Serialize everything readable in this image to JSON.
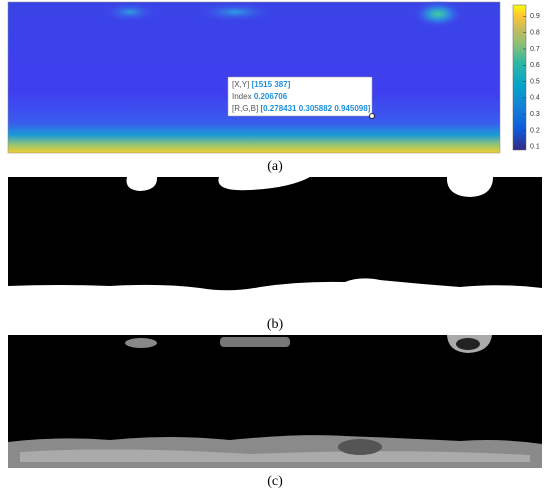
{
  "panels": [
    {
      "caption": "(a)"
    },
    {
      "caption": "(b)"
    },
    {
      "caption": "(c)"
    }
  ],
  "colorbar": {
    "range": [
      0.08,
      0.97
    ],
    "ticks": [
      0.1,
      0.2,
      0.3,
      0.4,
      0.5,
      0.6,
      0.7,
      0.8,
      0.9
    ]
  },
  "datatip": {
    "xy_label": "[X,Y]",
    "xy_value": "[1515 387]",
    "index_label": "Index",
    "index_value": "0.206706",
    "rgb_label": "[R,G,B]",
    "rgb_value": "[0.278431 0.305882 0.945098]"
  }
}
